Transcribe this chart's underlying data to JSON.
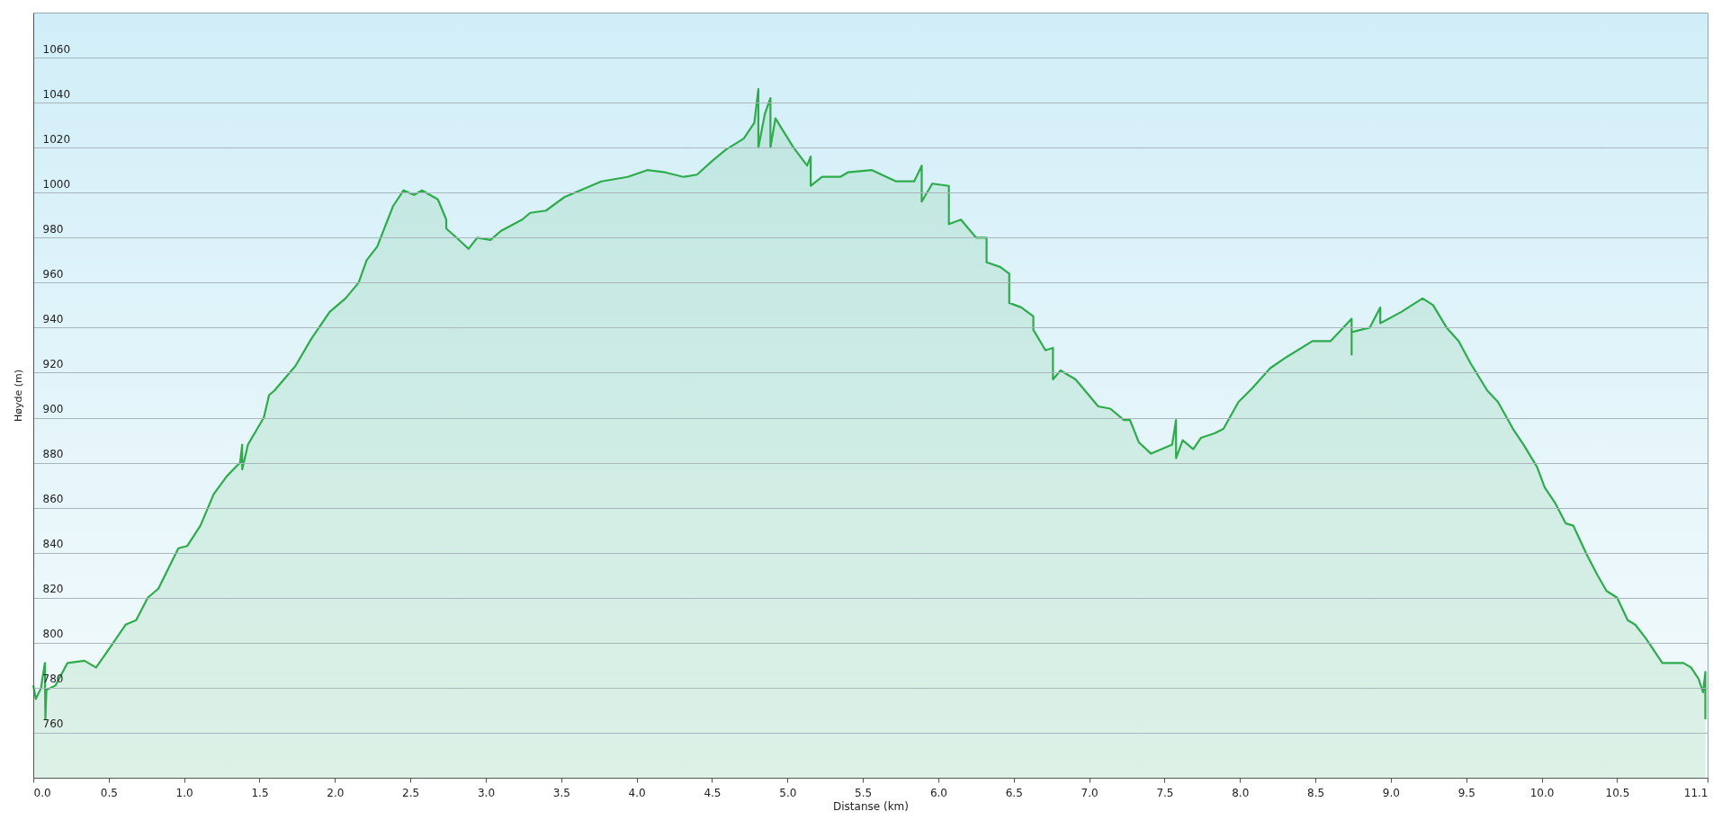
{
  "chart_data": {
    "type": "area",
    "xlabel": "Distanse (km)",
    "ylabel": "Høyde (m)",
    "x": [
      0,
      0.017,
      0.052,
      0.06,
      0.077,
      0.08,
      0.087,
      0.147,
      0.227,
      0.339,
      0.416,
      0.479,
      0.612,
      0.682,
      0.759,
      0.829,
      0.962,
      1.021,
      1.108,
      1.196,
      1.283,
      1.371,
      1.385,
      1.385,
      1.423,
      1.528,
      1.563,
      1.598,
      1.738,
      1.843,
      1.965,
      2.07,
      2.157,
      2.21,
      2.28,
      2.385,
      2.455,
      2.524,
      2.577,
      2.682,
      2.738,
      2.738,
      2.822,
      2.885,
      2.944,
      3.031,
      3.101,
      3.241,
      3.294,
      3.399,
      3.521,
      3.626,
      3.766,
      3.853,
      3.941,
      4.07,
      4.19,
      4.31,
      4.4,
      4.5,
      4.59,
      4.71,
      4.78,
      4.807,
      4.807,
      4.85,
      4.887,
      4.887,
      4.92,
      5.04,
      5.13,
      5.154,
      5.154,
      5.23,
      5.35,
      5.4,
      5.56,
      5.72,
      5.84,
      5.89,
      5.89,
      5.96,
      6.07,
      6.07,
      6.15,
      6.25,
      6.32,
      6.32,
      6.41,
      6.47,
      6.47,
      6.55,
      6.63,
      6.63,
      6.71,
      6.76,
      6.76,
      6.81,
      6.91,
      7.01,
      7.06,
      7.14,
      7.23,
      7.27,
      7.33,
      7.41,
      7.48,
      7.55,
      7.576,
      7.576,
      7.62,
      7.69,
      7.74,
      7.83,
      7.89,
      7.99,
      8.08,
      8.2,
      8.31,
      8.48,
      8.6,
      8.74,
      8.74,
      8.74,
      8.86,
      8.93,
      8.93,
      9.07,
      9.21,
      9.28,
      9.37,
      9.45,
      9.53,
      9.64,
      9.71,
      9.81,
      9.88,
      9.97,
      10.02,
      10.09,
      10.16,
      10.21,
      10.3,
      10.37,
      10.43,
      10.5,
      10.57,
      10.62,
      10.69,
      10.8,
      10.83,
      10.94,
      10.99,
      11.04,
      11.07,
      11.085,
      11.085
    ],
    "series": [
      {
        "color": "#2eac4c",
        "values": [
          781,
          775,
          780,
          784,
          791,
          766,
          779,
          781,
          791,
          792,
          789,
          795,
          808,
          810,
          820,
          824,
          842,
          843,
          852,
          866,
          874,
          880,
          888,
          877,
          888,
          900,
          910,
          912,
          923,
          935,
          947,
          953,
          960,
          970,
          976,
          994,
          1001,
          999,
          1001,
          997,
          988,
          984,
          979,
          975,
          980,
          979,
          983,
          988,
          991,
          992,
          998,
          1001,
          1005,
          1006,
          1007,
          1010,
          1009,
          1007,
          1008,
          1014,
          1019,
          1024,
          1031,
          1046,
          1020,
          1035,
          1042,
          1020,
          1033,
          1020,
          1012,
          1016,
          1003,
          1007,
          1007,
          1009,
          1010,
          1005,
          1005,
          1012,
          996,
          1004,
          1003,
          986,
          988,
          980,
          980,
          969,
          967,
          964,
          951,
          949,
          945,
          939,
          930,
          931,
          917,
          921,
          917,
          909,
          905,
          904,
          899,
          899,
          889,
          884,
          886,
          888,
          899,
          882,
          890,
          886,
          891,
          893,
          895,
          907,
          913,
          922,
          927,
          934,
          934,
          944,
          928,
          938,
          940,
          949,
          942,
          947,
          953,
          950,
          940,
          934,
          924,
          912,
          907,
          895,
          888,
          878,
          869,
          862,
          853,
          852,
          839,
          830,
          823,
          820,
          810,
          808,
          802,
          791,
          791,
          791,
          789,
          784,
          778,
          787,
          766
        ]
      }
    ],
    "xlim": [
      0,
      11.1
    ],
    "ylim": [
      740,
      1080
    ],
    "xticks": [
      {
        "value": 0,
        "label": "0.0"
      },
      0.5,
      {
        "value": 1,
        "label": "1.0"
      },
      1.5,
      {
        "value": 2,
        "label": "2.0"
      },
      2.5,
      {
        "value": 3,
        "label": "3.0"
      },
      3.5,
      {
        "value": 4,
        "label": "4.0"
      },
      4.5,
      {
        "value": 5,
        "label": "5.0"
      },
      5.5,
      {
        "value": 6,
        "label": "6.0"
      },
      6.5,
      {
        "value": 7,
        "label": "7.0"
      },
      7.5,
      {
        "value": 8,
        "label": "8.0"
      },
      8.5,
      {
        "value": 9,
        "label": "9.0"
      },
      9.5,
      {
        "value": 10,
        "label": "10.0"
      },
      10.5,
      11.1
    ],
    "yticks": [
      760,
      780,
      800,
      820,
      840,
      860,
      880,
      900,
      920,
      940,
      960,
      980,
      1000,
      1020,
      1040,
      1060
    ],
    "grid": "y"
  }
}
